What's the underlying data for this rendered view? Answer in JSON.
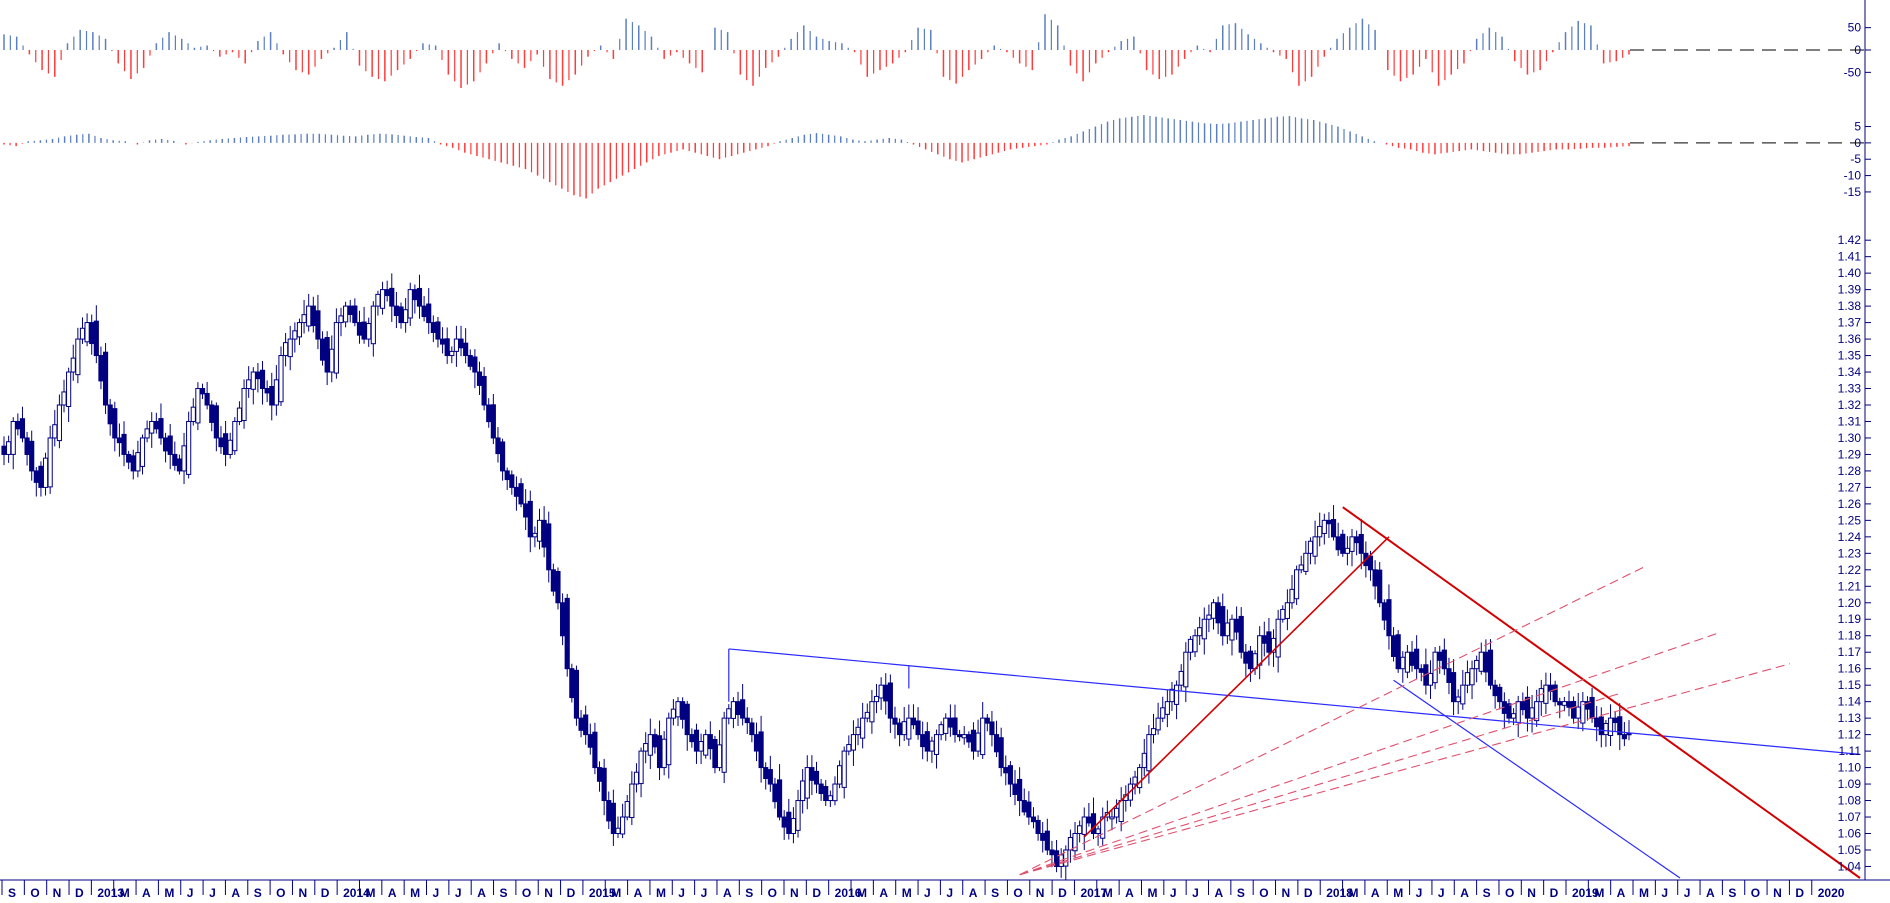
{
  "colors": {
    "background": "#ffffff",
    "axis": "#000080",
    "price": "#000080",
    "positive": "#5b7fc0",
    "negative": "#ff3b3b",
    "trend_red": "#d40000",
    "trend_blue": "#2b2bff",
    "dashed_red": "#e0506e",
    "zero_line": "#333333"
  },
  "chart_data": [
    {
      "type": "bar",
      "panel": "oscillator-top",
      "y_ticks": [
        "50",
        "0",
        "-50"
      ],
      "ylim": [
        -85,
        85
      ],
      "x_start": "2012-09",
      "x_end": "2019-05",
      "values": [
        35,
        30,
        -10,
        -45,
        -60,
        15,
        45,
        40,
        25,
        -30,
        -65,
        -40,
        15,
        40,
        25,
        5,
        10,
        -15,
        -5,
        -30,
        20,
        40,
        -10,
        -45,
        -55,
        -20,
        5,
        40,
        -35,
        -60,
        -70,
        -45,
        -20,
        15,
        10,
        -55,
        -85,
        -70,
        -30,
        15,
        -20,
        -40,
        -10,
        -65,
        -80,
        -55,
        -15,
        10,
        -20,
        70,
        55,
        30,
        -20,
        -5,
        -30,
        -50,
        50,
        40,
        -55,
        -80,
        -40,
        -15,
        25,
        55,
        30,
        20,
        15,
        -5,
        -60,
        -45,
        -30,
        -5,
        50,
        45,
        -60,
        -75,
        -45,
        -20,
        10,
        -5,
        -30,
        -45,
        80,
        55,
        -35,
        -70,
        -30,
        -5,
        20,
        30,
        -45,
        -65,
        -55,
        -20,
        10,
        -5,
        55,
        60,
        35,
        15,
        -5,
        -20,
        -80,
        -60,
        -15,
        25,
        50,
        70,
        45,
        -45,
        -70,
        -55,
        -20,
        -80,
        -55,
        -30,
        25,
        50,
        30,
        -25,
        -55,
        -45,
        -5,
        40,
        65,
        55,
        -30,
        -25,
        -10
      ],
      "zero_line": "dashed"
    },
    {
      "type": "bar",
      "panel": "oscillator-middle",
      "y_ticks": [
        "5",
        "0",
        "-5",
        "-10",
        "-15"
      ],
      "ylim": [
        -19,
        7
      ],
      "x_start": "2012-09",
      "x_end": "2019-05",
      "values": [
        -0.5,
        -1,
        0.5,
        0.8,
        1.2,
        2,
        2.5,
        2.8,
        1.5,
        0.8,
        0.5,
        -0.5,
        0.8,
        1.2,
        0.6,
        -0.5,
        0.3,
        0.8,
        1.2,
        1.5,
        1.8,
        2,
        2.2,
        2.5,
        2.6,
        2.8,
        2.8,
        2.5,
        2.2,
        2,
        2.5,
        2.8,
        2.6,
        2.2,
        1.8,
        1.5,
        -0.5,
        -1.5,
        -3,
        -4,
        -5,
        -6,
        -7,
        -8,
        -10,
        -12,
        -14,
        -16,
        -17,
        -14,
        -12,
        -10,
        -8,
        -6,
        -4,
        -3,
        -2,
        -3,
        -4,
        -5,
        -4,
        -3,
        -2,
        -1,
        0.5,
        1.5,
        2.5,
        3,
        2.5,
        2,
        1,
        0.5,
        1,
        1.5,
        1,
        -0.5,
        -2,
        -3.5,
        -5,
        -6,
        -5,
        -4,
        -3,
        -2,
        -1.5,
        -1,
        -0.5,
        1,
        2,
        3.5,
        5,
        6.5,
        7.5,
        8,
        8.5,
        8,
        7.5,
        7,
        6.5,
        6,
        5.8,
        6,
        6.5,
        7,
        7.5,
        8,
        8.2,
        7.5,
        7,
        6,
        5,
        3.5,
        2,
        0.5,
        -0.5,
        -1.5,
        -2,
        -3,
        -3.5,
        -3,
        -2.5,
        -2,
        -2.5,
        -3,
        -3.5,
        -3.5,
        -3,
        -2.5,
        -2,
        -2,
        -1.8,
        -1.5,
        -1.5,
        -1.2,
        -1
      ],
      "zero_line": "dashed"
    },
    {
      "type": "candlestick",
      "panel": "price",
      "frequency": "weekly",
      "y_ticks": [
        "1.42",
        "1.41",
        "1.40",
        "1.39",
        "1.38",
        "1.37",
        "1.36",
        "1.35",
        "1.34",
        "1.33",
        "1.32",
        "1.31",
        "1.30",
        "1.29",
        "1.28",
        "1.27",
        "1.26",
        "1.25",
        "1.24",
        "1.23",
        "1.22",
        "1.21",
        "1.20",
        "1.19",
        "1.18",
        "1.17",
        "1.16",
        "1.15",
        "1.14",
        "1.13",
        "1.12",
        "1.11",
        "1.10",
        "1.09",
        "1.08",
        "1.07",
        "1.06",
        "1.05",
        "1.04"
      ],
      "ylim": [
        1.033,
        1.428
      ],
      "x_start": "2012-09",
      "x_end": "2019-05",
      "closes": [
        1.29,
        1.31,
        1.3,
        1.28,
        1.27,
        1.3,
        1.32,
        1.34,
        1.36,
        1.37,
        1.35,
        1.32,
        1.3,
        1.29,
        1.28,
        1.3,
        1.31,
        1.3,
        1.29,
        1.28,
        1.31,
        1.33,
        1.32,
        1.3,
        1.29,
        1.31,
        1.33,
        1.34,
        1.33,
        1.32,
        1.35,
        1.36,
        1.37,
        1.38,
        1.36,
        1.34,
        1.37,
        1.38,
        1.37,
        1.36,
        1.38,
        1.39,
        1.38,
        1.37,
        1.39,
        1.38,
        1.37,
        1.36,
        1.35,
        1.36,
        1.35,
        1.34,
        1.32,
        1.3,
        1.28,
        1.27,
        1.26,
        1.24,
        1.25,
        1.22,
        1.2,
        1.16,
        1.13,
        1.12,
        1.1,
        1.08,
        1.06,
        1.07,
        1.09,
        1.11,
        1.12,
        1.1,
        1.13,
        1.14,
        1.12,
        1.11,
        1.12,
        1.1,
        1.13,
        1.14,
        1.13,
        1.12,
        1.1,
        1.09,
        1.07,
        1.06,
        1.08,
        1.1,
        1.09,
        1.08,
        1.09,
        1.11,
        1.12,
        1.13,
        1.14,
        1.15,
        1.13,
        1.12,
        1.13,
        1.12,
        1.11,
        1.12,
        1.13,
        1.12,
        1.12,
        1.11,
        1.13,
        1.12,
        1.1,
        1.09,
        1.08,
        1.07,
        1.06,
        1.05,
        1.04,
        1.05,
        1.06,
        1.07,
        1.06,
        1.07,
        1.07,
        1.08,
        1.09,
        1.1,
        1.12,
        1.13,
        1.14,
        1.15,
        1.17,
        1.18,
        1.19,
        1.2,
        1.18,
        1.19,
        1.17,
        1.16,
        1.18,
        1.17,
        1.19,
        1.2,
        1.22,
        1.23,
        1.24,
        1.25,
        1.24,
        1.23,
        1.24,
        1.23,
        1.22,
        1.2,
        1.18,
        1.16,
        1.17,
        1.16,
        1.15,
        1.17,
        1.16,
        1.14,
        1.15,
        1.16,
        1.17,
        1.15,
        1.14,
        1.13,
        1.14,
        1.13,
        1.14,
        1.15,
        1.14,
        1.14,
        1.13,
        1.14,
        1.13,
        1.12,
        1.13,
        1.12,
        1.12
      ]
    }
  ],
  "x_axis_labels": [
    "S",
    "O",
    "N",
    "D",
    "2013",
    "M",
    "A",
    "M",
    "J",
    "J",
    "A",
    "S",
    "O",
    "N",
    "D",
    "2014",
    "M",
    "A",
    "M",
    "J",
    "J",
    "A",
    "S",
    "O",
    "N",
    "D",
    "2015",
    "M",
    "A",
    "M",
    "J",
    "J",
    "A",
    "S",
    "O",
    "N",
    "D",
    "2016",
    "M",
    "A",
    "M",
    "J",
    "J",
    "A",
    "S",
    "O",
    "N",
    "D",
    "2017",
    "M",
    "A",
    "M",
    "J",
    "J",
    "A",
    "S",
    "O",
    "N",
    "D",
    "2018",
    "M",
    "A",
    "M",
    "J",
    "J",
    "A",
    "S",
    "O",
    "N",
    "D",
    "2019",
    "M",
    "A",
    "M",
    "J",
    "J",
    "A",
    "S",
    "O",
    "N",
    "D",
    "2020"
  ]
}
